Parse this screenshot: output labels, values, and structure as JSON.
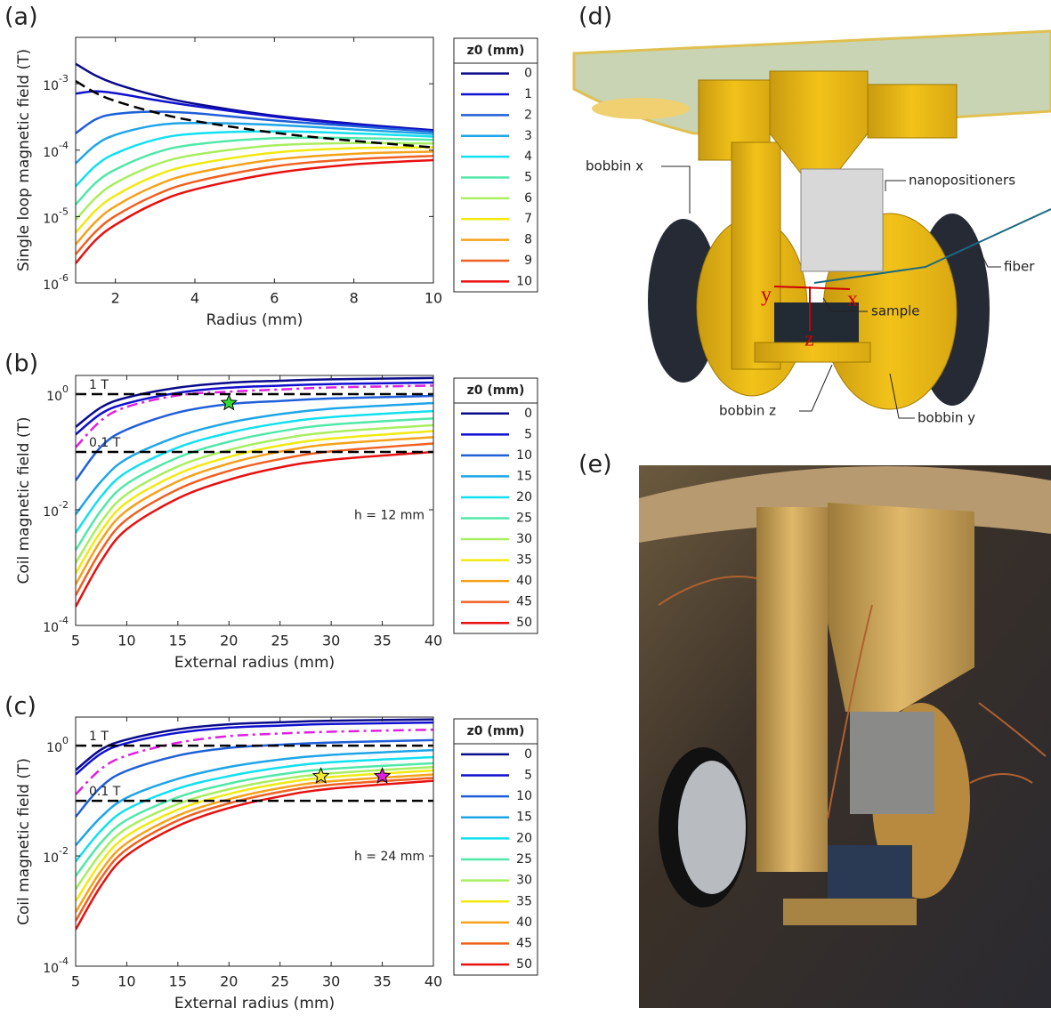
{
  "chart_data": [
    {
      "type": "line",
      "panel_label": "(a)",
      "xlabel": "Radius (mm)",
      "ylabel": "Single loop magnetic field (T)",
      "legend_title": "z0 (mm)",
      "log_y": true,
      "xlim": [
        1,
        10
      ],
      "ylim": [
        1e-06,
        0.005
      ],
      "xticks": [
        2,
        4,
        6,
        8,
        10
      ],
      "yticks": [
        {
          "value": 1e-06,
          "label": "10",
          "exponent": "-6"
        },
        {
          "value": 1e-05,
          "label": "10",
          "exponent": "-5"
        },
        {
          "value": 0.0001,
          "label": "10",
          "exponent": "-4"
        },
        {
          "value": 0.001,
          "label": "10",
          "exponent": "-3"
        }
      ],
      "x": [
        1,
        1.5,
        2,
        3,
        4,
        6,
        8,
        10
      ],
      "series": [
        {
          "name": "0",
          "color": "#0a0a8c",
          "values": [
            0.002,
            0.00133,
            0.001,
            0.00067,
            0.0005,
            0.00033,
            0.00025,
            0.0002
          ]
        },
        {
          "name": "1",
          "color": "#1010d0",
          "values": [
            0.00071,
            0.00077,
            0.00072,
            0.00057,
            0.00046,
            0.00032,
            0.000244,
            0.000197
          ]
        },
        {
          "name": "2",
          "color": "#1f5fd8",
          "values": [
            0.000179,
            0.00029,
            0.00035,
            0.00038,
            0.00036,
            0.00028,
            0.00023,
            0.00019
          ]
        },
        {
          "name": "3",
          "color": "#1ea5e8",
          "values": [
            6.3e-05,
            0.000119,
            0.00017,
            0.000236,
            0.000256,
            0.00024,
            0.000205,
            0.000176
          ]
        },
        {
          "name": "4",
          "color": "#10e0f0",
          "values": [
            2.85e-05,
            5.8e-05,
            8.9e-05,
            0.000144,
            0.000177,
            0.000192,
            0.000179,
            0.00016
          ]
        },
        {
          "name": "5",
          "color": "#50e8a8",
          "values": [
            1.51e-05,
            3.2e-05,
            5.1e-05,
            9.1e-05,
            0.000122,
            0.000151,
            0.000152,
            0.000143
          ]
        },
        {
          "name": "6",
          "color": "#a8ee60",
          "values": [
            8.9e-06,
            1.9e-05,
            3.2e-05,
            6e-05,
            8.5e-05,
            0.000118,
            0.000128,
            0.000126
          ]
        },
        {
          "name": "7",
          "color": "#f0ea10",
          "values": [
            5.7e-06,
            1.23e-05,
            2.07e-05,
            4.1e-05,
            6.1e-05,
            9.2e-05,
            0.000107,
            0.00011
          ]
        },
        {
          "name": "8",
          "color": "#f5a21a",
          "values": [
            3.8e-06,
            8.3e-06,
            1.43e-05,
            2.9e-05,
            4.5e-05,
            7.2e-05,
            8.8e-05,
            9.5e-05
          ]
        },
        {
          "name": "9",
          "color": "#f06020",
          "values": [
            2.7e-06,
            5.9e-06,
            1.02e-05,
            2.1e-05,
            3.35e-05,
            5.7e-05,
            7.3e-05,
            8.2e-05
          ]
        },
        {
          "name": "10",
          "color": "#e81010",
          "values": [
            1.97e-06,
            4.4e-06,
            7.5e-06,
            1.58e-05,
            2.56e-05,
            4.5e-05,
            6.1e-05,
            7.07e-05
          ]
        }
      ],
      "dashed_curve": {
        "color": "#000000",
        "values": [
          0.0011,
          0.00073,
          0.00055,
          0.00037,
          0.000275,
          0.000183,
          0.000138,
          0.00011
        ]
      }
    },
    {
      "type": "line",
      "panel_label": "(b)",
      "xlabel": "External radius (mm)",
      "ylabel": "Coil magnetic field (T)",
      "legend_title": "z0 (mm)",
      "log_y": true,
      "xlim": [
        5,
        40
      ],
      "ylim": [
        0.0001,
        2.1
      ],
      "xticks": [
        5,
        10,
        15,
        20,
        25,
        30,
        35,
        40
      ],
      "yticks": [
        {
          "value": 0.0001,
          "label": "10",
          "exponent": "-4"
        },
        {
          "value": 0.01,
          "label": "10",
          "exponent": "-2"
        },
        {
          "value": 1,
          "label": "10",
          "exponent": "0"
        }
      ],
      "x": [
        5,
        7.5,
        10,
        15,
        20,
        25,
        30,
        40
      ],
      "series": [
        {
          "name": "0",
          "color": "#0a0a8c",
          "values": [
            0.27,
            0.59,
            0.87,
            1.29,
            1.57,
            1.7,
            1.8,
            1.9
          ]
        },
        {
          "name": "5",
          "color": "#1010d0",
          "values": [
            0.2,
            0.46,
            0.69,
            1.05,
            1.29,
            1.4,
            1.49,
            1.58
          ]
        },
        {
          "name": "10",
          "color": "#1f5fd8",
          "values": [
            0.032,
            0.124,
            0.243,
            0.48,
            0.67,
            0.76,
            0.84,
            0.93
          ]
        },
        {
          "name": "15",
          "color": "#1ea5e8",
          "values": [
            0.0083,
            0.031,
            0.076,
            0.185,
            0.32,
            0.45,
            0.56,
            0.7
          ]
        },
        {
          "name": "20",
          "color": "#10e0f0",
          "values": [
            0.004,
            0.017,
            0.045,
            0.119,
            0.214,
            0.315,
            0.4,
            0.51
          ]
        },
        {
          "name": "25",
          "color": "#50e8a8",
          "values": [
            0.002,
            0.0098,
            0.028,
            0.08,
            0.15,
            0.227,
            0.296,
            0.38
          ]
        },
        {
          "name": "30",
          "color": "#a8ee60",
          "values": [
            0.0012,
            0.0062,
            0.0186,
            0.056,
            0.108,
            0.167,
            0.22,
            0.29
          ]
        },
        {
          "name": "35",
          "color": "#f0ea10",
          "values": [
            0.00079,
            0.0043,
            0.0134,
            0.0415,
            0.082,
            0.129,
            0.17,
            0.23
          ]
        },
        {
          "name": "40",
          "color": "#f5a21a",
          "values": [
            0.00051,
            0.003,
            0.0097,
            0.031,
            0.063,
            0.101,
            0.136,
            0.18
          ]
        },
        {
          "name": "45",
          "color": "#f06020",
          "values": [
            0.00033,
            0.002,
            0.0068,
            0.0226,
            0.047,
            0.075,
            0.102,
            0.14
          ]
        },
        {
          "name": "50",
          "color": "#e81010",
          "values": [
            0.00021,
            0.0013,
            0.0046,
            0.0157,
            0.033,
            0.054,
            0.073,
            0.1
          ]
        }
      ],
      "extra_curve": {
        "color": "#e020e0",
        "values": [
          0.12,
          0.35,
          0.6,
          0.95,
          1.1,
          1.2,
          1.3,
          1.4
        ]
      },
      "hlines": [
        {
          "value": 1,
          "label": "1 T"
        },
        {
          "value": 0.1,
          "label": "0.1 T"
        }
      ],
      "stars": [
        {
          "x": 20,
          "y": 0.7,
          "color": "#33dd33"
        }
      ],
      "annotation": "h = 12 mm"
    },
    {
      "type": "line",
      "panel_label": "(c)",
      "xlabel": "External radius (mm)",
      "ylabel": "Coil magnetic field (T)",
      "legend_title": "z0 (mm)",
      "log_y": true,
      "xlim": [
        5,
        40
      ],
      "ylim": [
        0.0001,
        3.3
      ],
      "xticks": [
        5,
        10,
        15,
        20,
        25,
        30,
        35,
        40
      ],
      "yticks": [
        {
          "value": 0.0001,
          "label": "10",
          "exponent": "-4"
        },
        {
          "value": 0.01,
          "label": "10",
          "exponent": "-2"
        },
        {
          "value": 1,
          "label": "10",
          "exponent": "0"
        }
      ],
      "x": [
        5,
        7.5,
        10,
        15,
        20,
        25,
        30,
        40
      ],
      "series": [
        {
          "name": "0",
          "color": "#0a0a8c",
          "values": [
            0.36,
            0.85,
            1.29,
            1.98,
            2.44,
            2.66,
            2.83,
            3.0
          ]
        },
        {
          "name": "5",
          "color": "#1010d0",
          "values": [
            0.3,
            0.72,
            1.11,
            1.71,
            2.12,
            2.31,
            2.47,
            2.63
          ]
        },
        {
          "name": "10",
          "color": "#1f5fd8",
          "values": [
            0.051,
            0.18,
            0.35,
            0.66,
            0.91,
            1.04,
            1.14,
            1.26
          ]
        },
        {
          "name": "15",
          "color": "#1ea5e8",
          "values": [
            0.0155,
            0.051,
            0.114,
            0.25,
            0.41,
            0.56,
            0.68,
            0.83
          ]
        },
        {
          "name": "20",
          "color": "#10e0f0",
          "values": [
            0.0079,
            0.029,
            0.07,
            0.167,
            0.28,
            0.4,
            0.5,
            0.62
          ]
        },
        {
          "name": "25",
          "color": "#50e8a8",
          "values": [
            0.0043,
            0.0176,
            0.045,
            0.116,
            0.205,
            0.3,
            0.38,
            0.48
          ]
        },
        {
          "name": "30",
          "color": "#a8ee60",
          "values": [
            0.0025,
            0.0114,
            0.0316,
            0.088,
            0.162,
            0.244,
            0.315,
            0.41
          ]
        },
        {
          "name": "35",
          "color": "#f0ea10",
          "values": [
            0.0015,
            0.0078,
            0.023,
            0.069,
            0.133,
            0.206,
            0.27,
            0.355
          ]
        },
        {
          "name": "40",
          "color": "#f5a21a",
          "values": [
            0.00095,
            0.0054,
            0.017,
            0.054,
            0.107,
            0.17,
            0.226,
            0.3
          ]
        },
        {
          "name": "45",
          "color": "#f06020",
          "values": [
            0.00066,
            0.004,
            0.0132,
            0.044,
            0.09,
            0.145,
            0.195,
            0.26
          ]
        },
        {
          "name": "50",
          "color": "#e81010",
          "values": [
            0.00046,
            0.0029,
            0.0102,
            0.035,
            0.074,
            0.12,
            0.166,
            0.23
          ]
        }
      ],
      "extra_curve": {
        "color": "#e020e0",
        "values": [
          0.13,
          0.38,
          0.66,
          1.13,
          1.49,
          1.66,
          1.79,
          1.95
        ]
      },
      "hlines": [
        {
          "value": 1,
          "label": "1 T"
        },
        {
          "value": 0.1,
          "label": "0.1 T"
        }
      ],
      "stars": [
        {
          "x": 29,
          "y": 0.28,
          "color": "#f0ea30"
        },
        {
          "x": 35,
          "y": 0.28,
          "color": "#e020e0"
        }
      ],
      "annotation": "h = 24 mm"
    }
  ],
  "diagram": {
    "label": "(d)",
    "labels": [
      "bobbin x",
      "nanopositioners",
      "fiber",
      "sample",
      "bobbin z",
      "bobbin y"
    ],
    "axes": [
      "y",
      "x",
      "z"
    ]
  },
  "photo": {
    "label": "(e)"
  }
}
